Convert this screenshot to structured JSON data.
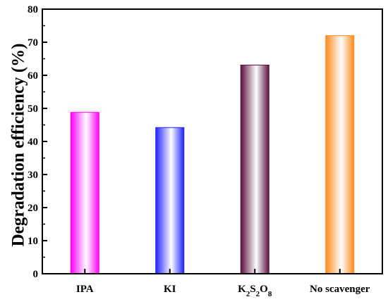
{
  "chart_data": {
    "type": "bar",
    "categories": [
      "IPA",
      "KI",
      "K2S2O8",
      "No scavenger"
    ],
    "category_labels": [
      {
        "parts": [
          {
            "text": "IPA",
            "sub": false
          }
        ]
      },
      {
        "parts": [
          {
            "text": "KI",
            "sub": false
          }
        ]
      },
      {
        "parts": [
          {
            "text": "K",
            "sub": false
          },
          {
            "text": "2",
            "sub": true
          },
          {
            "text": "S",
            "sub": false
          },
          {
            "text": "2",
            "sub": true
          },
          {
            "text": "O",
            "sub": false
          },
          {
            "text": "8",
            "sub": true
          }
        ]
      },
      {
        "parts": [
          {
            "text": "No scavenger",
            "sub": false
          }
        ]
      }
    ],
    "values": [
      48.8,
      44.2,
      63.1,
      72.0
    ],
    "colors": [
      "#ff00ff",
      "#2222ff",
      "#5a1040",
      "#ff8a1a"
    ],
    "ylabel": "Degradation efficiency (%)",
    "xlabel": "",
    "ylim": [
      0,
      80
    ],
    "yticks": [
      "0",
      "10",
      "20",
      "30",
      "40",
      "50",
      "60",
      "70",
      "80"
    ],
    "grid": false
  }
}
